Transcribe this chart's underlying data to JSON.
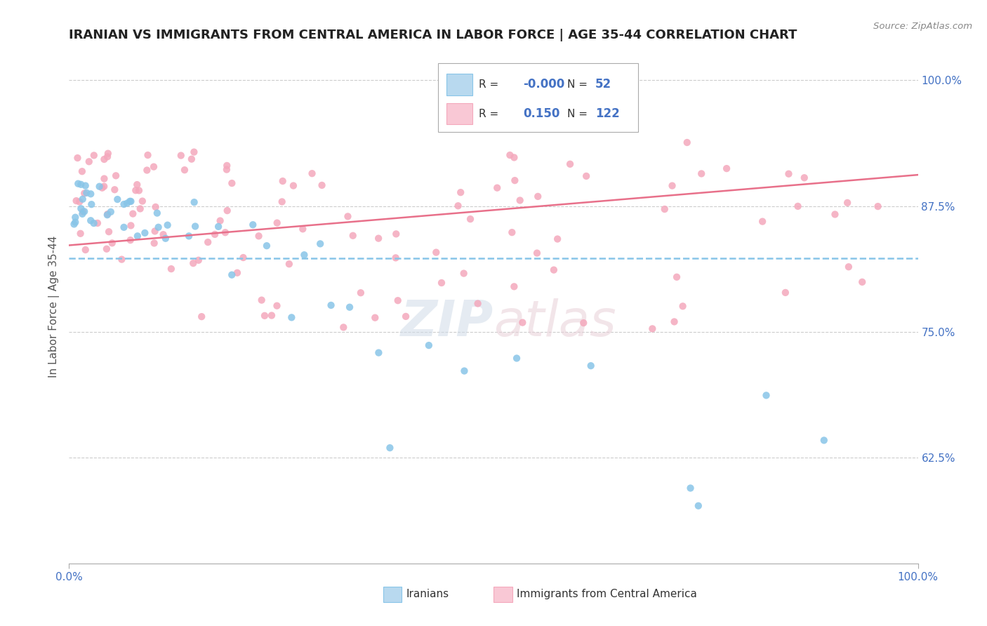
{
  "title": "IRANIAN VS IMMIGRANTS FROM CENTRAL AMERICA IN LABOR FORCE | AGE 35-44 CORRELATION CHART",
  "source": "Source: ZipAtlas.com",
  "ylabel": "In Labor Force | Age 35-44",
  "xlim": [
    0.0,
    1.0
  ],
  "ylim": [
    0.52,
    1.03
  ],
  "yticks": [
    0.625,
    0.75,
    0.875,
    1.0
  ],
  "ytick_labels": [
    "62.5%",
    "75.0%",
    "87.5%",
    "100.0%"
  ],
  "legend_blue_R": "-0.000",
  "legend_blue_N": "52",
  "legend_pink_R": "0.150",
  "legend_pink_N": "122",
  "legend_label_blue": "Iranians",
  "legend_label_pink": "Immigrants from Central America",
  "blue_dot_color": "#88c5e8",
  "pink_dot_color": "#f4a8bc",
  "blue_line_color": "#88c5e8",
  "pink_line_color": "#e8708a",
  "blue_legend_fill": "#b8d9ef",
  "pink_legend_fill": "#f9c8d5",
  "watermark": "ZIPAtlas",
  "right_tick_color": "#4472c4",
  "title_color": "#222222",
  "source_color": "#888888",
  "grid_color": "#cccccc",
  "bottom_tick_color": "#4472c4"
}
